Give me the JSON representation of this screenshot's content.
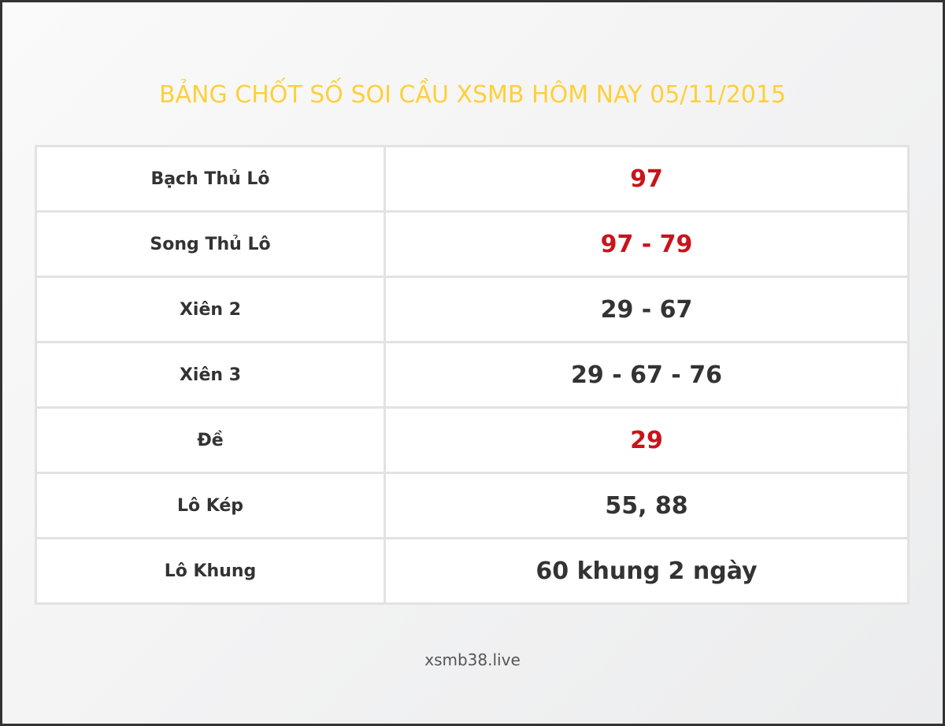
{
  "title": "BẢNG CHỐT SỐ SOI CẦU XSMB HÔM NAY 05/11/2015",
  "colors": {
    "title": "#fdd03b",
    "highlight": "#c8141c",
    "text": "#333333"
  },
  "rows": [
    {
      "label": "Bạch Thủ Lô",
      "value": "97",
      "highlight": true
    },
    {
      "label": "Song Thủ Lô",
      "value": "97 - 79",
      "highlight": true
    },
    {
      "label": "Xiên 2",
      "value": "29 - 67",
      "highlight": false
    },
    {
      "label": "Xiên 3",
      "value": "29 - 67 - 76",
      "highlight": false
    },
    {
      "label": "Đề",
      "value": "29",
      "highlight": true
    },
    {
      "label": "Lô Kép",
      "value": "55, 88",
      "highlight": false
    },
    {
      "label": "Lô Khung",
      "value": "60 khung 2 ngày",
      "highlight": false
    }
  ],
  "footer": "xsmb38.live"
}
